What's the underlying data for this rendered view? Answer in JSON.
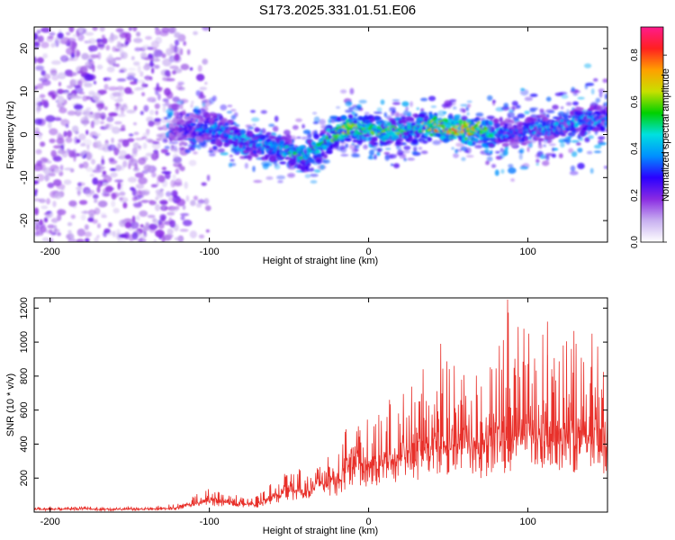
{
  "title": "S173.2025.331.01.51.E06",
  "chart_data": [
    {
      "type": "heatmap",
      "name": "spectrogram",
      "xlabel": "Height of straight line (km)",
      "ylabel": "Frequency (Hz)",
      "xlim": [
        -210,
        150
      ],
      "ylim": [
        -25,
        25
      ],
      "xticks": [
        -200,
        -100,
        0,
        100
      ],
      "yticks": [
        -20,
        -10,
        0,
        10,
        20
      ],
      "colorbar": {
        "label": "Normalized spectral amplitude",
        "ticks": [
          "0.0",
          "0.2",
          "0.4",
          "0.6",
          "0.8"
        ],
        "tick_values": [
          0.0,
          0.2,
          0.4,
          0.6,
          0.8
        ],
        "range": [
          0,
          0.92
        ],
        "colors": [
          "#ffffff",
          "#c8b0f0",
          "#8a2be2",
          "#2a00ff",
          "#0090ff",
          "#00e0e0",
          "#00d000",
          "#c8e000",
          "#ffa000",
          "#ff2020",
          "#ff1a8c"
        ]
      },
      "ridge": {
        "x": [
          -120,
          -110,
          -100,
          -90,
          -80,
          -70,
          -60,
          -50,
          -40,
          -30,
          -20,
          -10,
          0,
          10,
          20,
          30,
          40,
          50,
          60,
          70,
          80,
          90,
          100,
          110,
          120,
          130,
          140,
          150
        ],
        "freq": [
          0.5,
          1.5,
          1.5,
          0.5,
          -1,
          -2,
          -3,
          -4,
          -5,
          -3,
          0.5,
          1.5,
          1,
          0.5,
          1,
          1.5,
          2,
          1,
          1,
          1,
          0.5,
          0,
          1,
          1.5,
          2,
          3,
          3.5,
          3
        ],
        "amplitude": [
          0.25,
          0.35,
          0.45,
          0.45,
          0.45,
          0.45,
          0.5,
          0.55,
          0.55,
          0.55,
          0.7,
          0.7,
          0.6,
          0.65,
          0.6,
          0.55,
          0.75,
          0.85,
          0.88,
          0.8,
          0.45,
          0.35,
          0.4,
          0.45,
          0.45,
          0.45,
          0.45,
          0.45
        ]
      },
      "noise_region": {
        "x_from": -210,
        "x_to": -115,
        "amplitude": 0.2
      }
    },
    {
      "type": "line",
      "name": "snr",
      "xlabel": "Height of straight line (km)",
      "ylabel": "SNR (10 * v/v)",
      "xlim": [
        -210,
        150
      ],
      "ylim": [
        0,
        1260
      ],
      "xticks": [
        -200,
        -100,
        0,
        100
      ],
      "yticks": [
        200,
        400,
        600,
        800,
        1000,
        1200
      ],
      "color": "#e8302a",
      "x": [
        -210,
        -200,
        -190,
        -180,
        -170,
        -160,
        -150,
        -140,
        -130,
        -120,
        -110,
        -100,
        -90,
        -80,
        -70,
        -60,
        -50,
        -40,
        -30,
        -20,
        -10,
        0,
        10,
        20,
        30,
        40,
        50,
        60,
        70,
        80,
        90,
        100,
        110,
        120,
        130,
        140,
        150
      ],
      "y_baseline": [
        15,
        15,
        16,
        18,
        15,
        14,
        16,
        15,
        18,
        22,
        40,
        60,
        55,
        45,
        40,
        80,
        120,
        110,
        150,
        160,
        260,
        230,
        270,
        300,
        310,
        330,
        360,
        380,
        320,
        400,
        360,
        420,
        380,
        400,
        380,
        400,
        360
      ],
      "y_peak": [
        30,
        35,
        30,
        35,
        30,
        32,
        35,
        30,
        40,
        50,
        100,
        140,
        120,
        110,
        100,
        180,
        260,
        250,
        320,
        400,
        550,
        560,
        680,
        800,
        870,
        820,
        960,
        880,
        900,
        920,
        1250,
        1150,
        1110,
        990,
        1090,
        1020,
        900
      ],
      "peak_points": [
        {
          "x": 87,
          "y": 1250
        },
        {
          "x": 112,
          "y": 1120
        },
        {
          "x": 45,
          "y": 990
        },
        {
          "x": 140,
          "y": 1050
        },
        {
          "x": 130,
          "y": 990
        }
      ]
    }
  ]
}
